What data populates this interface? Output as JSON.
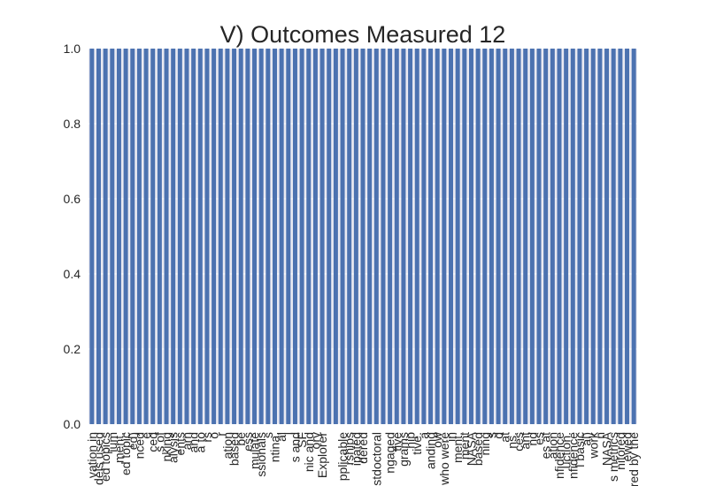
{
  "chart_data": {
    "type": "bar",
    "title": "V) Outcomes Measured 12",
    "xlabel": "",
    "ylabel": "",
    "ylim": [
      0,
      1.0
    ],
    "yticks": [
      "0.0",
      "0.2",
      "0.4",
      "0.6",
      "0.8",
      "1.0"
    ],
    "grid": true,
    "legend": "none",
    "bar_color": "#4c72b0",
    "background_color": "#eaeaf2",
    "grid_color": "#ffffff",
    "categories": [
      "vation in",
      "dels used",
      "ed topics",
      "ium",
      "ment,",
      "ed topic",
      "ed)",
      "nced",
      "e",
      "ced",
      "s of",
      "nking",
      "alysis",
      "ents",
      "arn",
      "and",
      "a to",
      "rs",
      "o",
      "r",
      "ation",
      "based",
      "be",
      "ess",
      "mulate",
      "ssionals",
      "s",
      "ntina,",
      "al",
      "l",
      "s and",
      "SF",
      "nic and",
      "ory",
      "Explorer",
      "",
      "",
      "pplicable",
      "rships",
      "ipated",
      "dered",
      "",
      "stdoctoral",
      "",
      "ngaged",
      "tive",
      "grams",
      "hip",
      "tive.",
      "a",
      "anding",
      "ow",
      "who were",
      "in",
      "ment:",
      "ment",
      "NASA",
      "based",
      "ning",
      "s",
      "d",
      "at",
      "ns.",
      "ces",
      "ant",
      "nd",
      "es",
      "es at",
      "ation",
      "nfidence",
      "uction.",
      "nfidence",
      "l basic",
      "al)",
      "work",
      "n",
      "NASA",
      "s metrics",
      "nitored",
      "ewed",
      "ered by the"
    ],
    "values": [
      1,
      1,
      1,
      1,
      1,
      1,
      1,
      1,
      1,
      1,
      1,
      1,
      1,
      1,
      1,
      1,
      1,
      1,
      1,
      1,
      1,
      1,
      1,
      1,
      1,
      1,
      1,
      1,
      1,
      1,
      1,
      1,
      1,
      1,
      1,
      1,
      1,
      1,
      1,
      1,
      1,
      1,
      1,
      1,
      1,
      1,
      1,
      1,
      1,
      1,
      1,
      1,
      1,
      1,
      1,
      1,
      1,
      1,
      1,
      1,
      1,
      1,
      1,
      1,
      1,
      1,
      1,
      1,
      1,
      1,
      1,
      1,
      1,
      1,
      1,
      1,
      1,
      1,
      1,
      1,
      1
    ]
  }
}
